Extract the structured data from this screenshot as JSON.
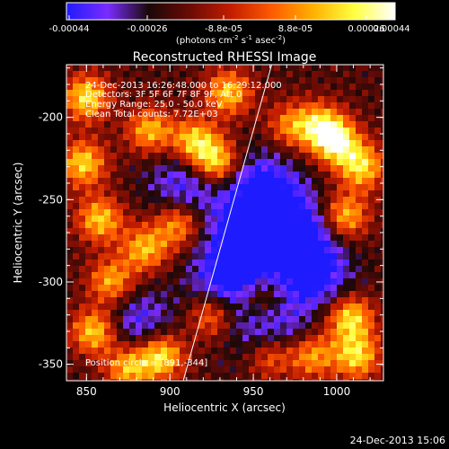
{
  "colorbar": {
    "tick_labels": [
      "-0.00044",
      "-0.00026",
      "-8.8e-05",
      "8.8e-05",
      "0.00026",
      "0.00044"
    ],
    "range": [
      -0.00044,
      0.00044
    ],
    "units": "(photons cm",
    "units_sup1": "-2",
    "units_mid": " s",
    "units_sup2": "-1",
    "units_end": " asec",
    "units_sup3": "-2",
    "units_close": ")",
    "palette": [
      "#1f1bff",
      "#7a2cff",
      "#1a0808",
      "#6a0b05",
      "#c21d00",
      "#ff5a00",
      "#ffb000",
      "#ffff40",
      "#ffffff"
    ]
  },
  "chart_data": {
    "type": "heatmap",
    "title": "Reconstructed RHESSI Image",
    "xlabel": "Heliocentric X (arcsec)",
    "ylabel": "Heliocentric Y (arcsec)",
    "xlim": [
      838,
      1028
    ],
    "ylim": [
      -360,
      -168
    ],
    "x_ticks": [
      "850",
      "900",
      "950",
      "1000"
    ],
    "y_ticks": [
      "-200",
      "-250",
      "-300",
      "-350"
    ],
    "annotations": [
      "24-Dec-2013 16:26:48.000 to 16:29:12.000",
      "Detectors: 3F 5F 6F 7F 8F 9F, Att 0",
      "Energy Range: 25.0 - 50.0 keV",
      "Clean     Total counts: 7.72E+03"
    ],
    "position_circle": "Position circle = [891,-344]",
    "limb_line": [
      [
        908,
        -360
      ],
      [
        961,
        -168
      ]
    ],
    "hot_spots": [
      {
        "x": 850,
        "y": -188,
        "v": 0.95
      },
      {
        "x": 848,
        "y": -228,
        "v": 0.9
      },
      {
        "x": 858,
        "y": -262,
        "v": 0.85
      },
      {
        "x": 865,
        "y": -300,
        "v": 0.8
      },
      {
        "x": 855,
        "y": -330,
        "v": 0.95
      },
      {
        "x": 888,
        "y": -208,
        "v": 0.8
      },
      {
        "x": 915,
        "y": -215,
        "v": 0.95
      },
      {
        "x": 928,
        "y": -228,
        "v": 1.0
      },
      {
        "x": 935,
        "y": -185,
        "v": 0.85
      },
      {
        "x": 905,
        "y": -265,
        "v": 0.75
      },
      {
        "x": 885,
        "y": -280,
        "v": 0.8
      },
      {
        "x": 925,
        "y": -320,
        "v": 0.7
      },
      {
        "x": 895,
        "y": -345,
        "v": 1.0
      },
      {
        "x": 875,
        "y": -352,
        "v": 0.85
      },
      {
        "x": 1000,
        "y": -215,
        "v": 1.0
      },
      {
        "x": 1015,
        "y": -230,
        "v": 0.9
      },
      {
        "x": 1005,
        "y": -260,
        "v": 0.85
      },
      {
        "x": 990,
        "y": -205,
        "v": 0.8
      },
      {
        "x": 1008,
        "y": -322,
        "v": 0.95
      },
      {
        "x": 1012,
        "y": -345,
        "v": 0.9
      },
      {
        "x": 985,
        "y": -345,
        "v": 0.75
      },
      {
        "x": 960,
        "y": -345,
        "v": 0.7
      },
      {
        "x": 955,
        "y": -310,
        "v": 0.55
      },
      {
        "x": 972,
        "y": -205,
        "v": 0.6
      }
    ],
    "cold_spots": [
      {
        "x": 955,
        "y": -245,
        "v": 0.9
      },
      {
        "x": 975,
        "y": -270,
        "v": 0.85
      },
      {
        "x": 945,
        "y": -275,
        "v": 0.8
      },
      {
        "x": 985,
        "y": -295,
        "v": 0.8
      },
      {
        "x": 935,
        "y": -300,
        "v": 0.75
      },
      {
        "x": 910,
        "y": -240,
        "v": 0.6
      },
      {
        "x": 880,
        "y": -325,
        "v": 0.55
      },
      {
        "x": 960,
        "y": -330,
        "v": 0.6
      }
    ]
  },
  "footer": {
    "timestamp": "24-Dec-2013 15:06"
  }
}
